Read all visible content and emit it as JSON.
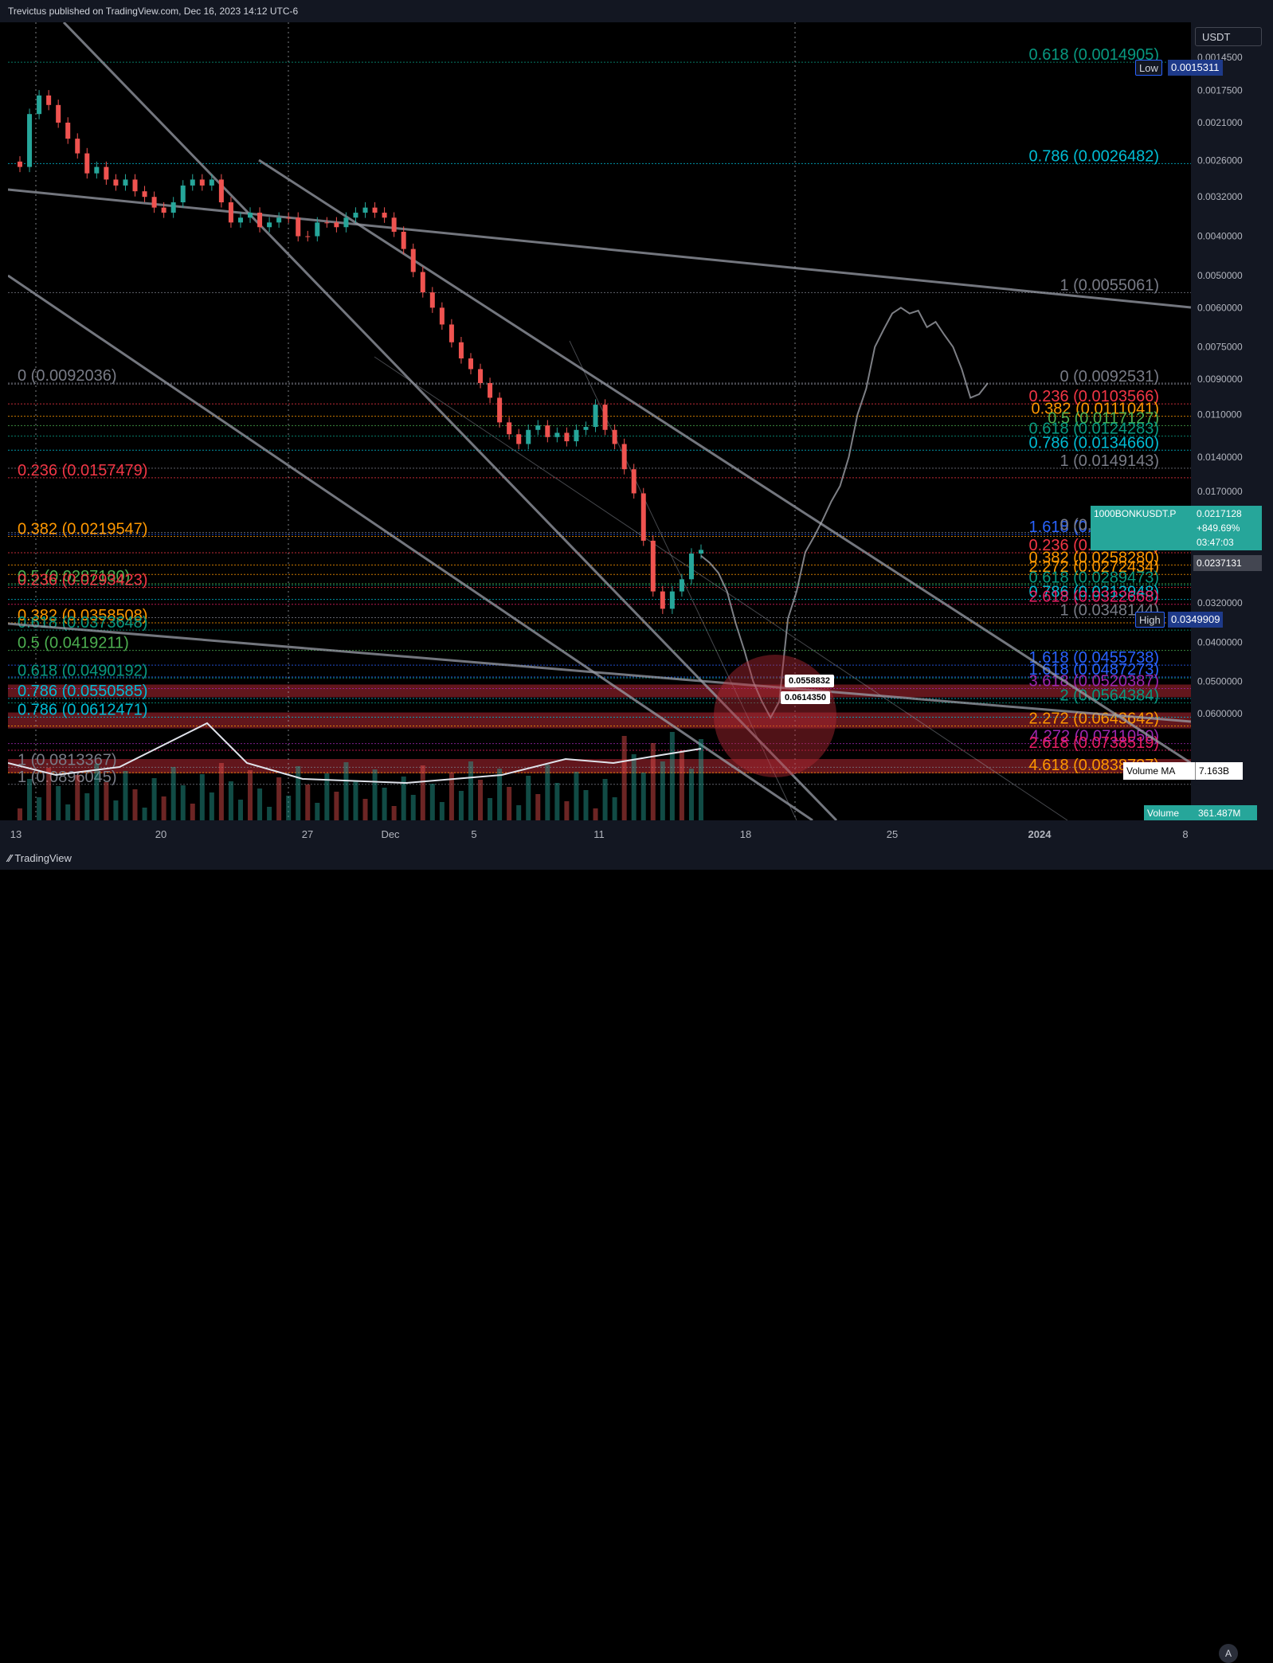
{
  "publisher": "Trevictus published on TradingView.com, Dec 16, 2023 14:12 UTC-6",
  "footer": {
    "logo": "TradingView"
  },
  "axis": {
    "currency": "USDT",
    "auto_label": "A",
    "y_ticks": [
      "0.0014500",
      "0.0017500",
      "0.0021000",
      "0.0026000",
      "0.0032000",
      "0.0040000",
      "0.0050000",
      "0.0060000",
      "0.0075000",
      "0.0090000",
      "0.0110000",
      "0.0140000",
      "0.0170000",
      "0.0260000",
      "0.0320000",
      "0.0400000",
      "0.0500000",
      "0.0600000"
    ],
    "x_ticks": [
      "13",
      "20",
      "27",
      "Dec",
      "5",
      "11",
      "18",
      "25",
      "2024",
      "8"
    ],
    "sub_ticks": [
      "2",
      "3",
      "5"
    ]
  },
  "markers": {
    "low_label": "Low",
    "low_value": "0.0015311",
    "high_label": "High",
    "high_value": "0.0349909"
  },
  "symbol": {
    "name": "1000BONKUSDT.P",
    "price": "0.0217128",
    "change": "+849.69%",
    "countdown": "03:47:03",
    "current_price": "0.0237131"
  },
  "volume": {
    "ma_label": "Volume MA",
    "ma_value": "7.163B",
    "label": "Volume",
    "value": "361.487M"
  },
  "callouts": [
    "0.0558832",
    "0.0614350"
  ],
  "colors": {
    "up": "#26a69a",
    "down": "#ef5350",
    "fib_red": "#f23645",
    "fib_orange": "#ff9800",
    "fib_green": "#4caf50",
    "fib_teal": "#089981",
    "fib_cyan": "#00bcd4",
    "fib_blue": "#2962ff",
    "fib_purple": "#9c27b0",
    "fib_pink": "#e91e63",
    "fib_gray": "#787b86",
    "zone": "#b22833"
  },
  "chart_data": {
    "type": "candlestick",
    "scale": "log-inverted",
    "ylim": [
      0.00145,
      0.06
    ],
    "x_range": [
      "Nov 13",
      "Jan 9"
    ],
    "grid": false,
    "fib_labels": [
      {
        "text": "0.618 (0.0014905)",
        "price": 0.0014905,
        "side": "right",
        "color": "#089981"
      },
      {
        "text": "0.786 (0.0026482)",
        "price": 0.0026482,
        "side": "right",
        "color": "#00bcd4"
      },
      {
        "text": "1 (0.0055061)",
        "price": 0.0055061,
        "side": "right",
        "color": "#787b86"
      },
      {
        "text": "0 (0.0092036)",
        "price": 0.0092036,
        "side": "left",
        "color": "#787b86"
      },
      {
        "text": "0 (0.0092531)",
        "price": 0.0092531,
        "side": "right",
        "color": "#787b86"
      },
      {
        "text": "0.236 (0.0103566)",
        "price": 0.0103566,
        "side": "right",
        "color": "#f23645"
      },
      {
        "text": "0.382 (0.0111041)",
        "price": 0.0111041,
        "side": "right",
        "color": "#ff9800"
      },
      {
        "text": "0.5 (0.0117127)",
        "price": 0.0117127,
        "side": "right",
        "color": "#4caf50"
      },
      {
        "text": "0.618 (0.0124283)",
        "price": 0.0124283,
        "side": "right",
        "color": "#089981"
      },
      {
        "text": "0.786 (0.0134660)",
        "price": 0.013466,
        "side": "right",
        "color": "#00bcd4"
      },
      {
        "text": "1 (0.0149143)",
        "price": 0.0149143,
        "side": "right",
        "color": "#787b86"
      },
      {
        "text": "0.236 (0.0157479)",
        "price": 0.0157479,
        "side": "left",
        "color": "#f23645"
      },
      {
        "text": "1.618 (0.0217128)",
        "price": 0.0217128,
        "side": "right",
        "color": "#2962ff"
      },
      {
        "text": "0 (0.0214753)",
        "price": 0.0214753,
        "side": "right",
        "color": "#787b86"
      },
      {
        "text": "0.382 (0.0219547)",
        "price": 0.0219547,
        "side": "left",
        "color": "#ff9800"
      },
      {
        "text": "0.236 (0.0240887)",
        "price": 0.0240887,
        "side": "right",
        "color": "#f23645"
      },
      {
        "text": "0.382 (0.0258280)",
        "price": 0.025828,
        "side": "right",
        "color": "#ff9800"
      },
      {
        "text": "2.272 (0.0272434)",
        "price": 0.0272434,
        "side": "right",
        "color": "#ff9800"
      },
      {
        "text": "0.5 (0.0287180)",
        "price": 0.028718,
        "side": "left",
        "color": "#4caf50"
      },
      {
        "text": "0.236 (0.0293423)",
        "price": 0.0293423,
        "side": "left",
        "color": "#f23645"
      },
      {
        "text": "0.618 (0.0289473)",
        "price": 0.0289473,
        "side": "right",
        "color": "#089981"
      },
      {
        "text": "0.786 (0.0313948)",
        "price": 0.0313948,
        "side": "right",
        "color": "#00bcd4"
      },
      {
        "text": "2.618 (0.0322668)",
        "price": 0.0322668,
        "side": "right",
        "color": "#e91e63"
      },
      {
        "text": "1 (0.0348144)",
        "price": 0.0348144,
        "side": "right",
        "color": "#787b86"
      },
      {
        "text": "0.382 (0.0358508)",
        "price": 0.0358508,
        "side": "left",
        "color": "#ff9800"
      },
      {
        "text": "0.618 (0.0373648)",
        "price": 0.0373648,
        "side": "left",
        "color": "#089981"
      },
      {
        "text": "0.5 (0.0419211)",
        "price": 0.0419211,
        "side": "left",
        "color": "#4caf50"
      },
      {
        "text": "1.618 (0.0455738)",
        "price": 0.0455738,
        "side": "right",
        "color": "#2962ff"
      },
      {
        "text": "1.618 (0.0487273)",
        "price": 0.0487273,
        "side": "right",
        "color": "#2962ff"
      },
      {
        "text": "0.618 (0.0490192)",
        "price": 0.0490192,
        "side": "left",
        "color": "#089981"
      },
      {
        "text": "3.618 (0.0520387)",
        "price": 0.0520387,
        "side": "right",
        "color": "#9c27b0"
      },
      {
        "text": "0.786 (0.0550585)",
        "price": 0.0550585,
        "side": "left",
        "color": "#00bcd4"
      },
      {
        "text": "2 (0.0564384)",
        "price": 0.0564384,
        "side": "right",
        "color": "#089981"
      },
      {
        "text": "0.786 (0.0612471)",
        "price": 0.0612471,
        "side": "left",
        "color": "#00bcd4"
      },
      {
        "text": "2.272 (0.0643642)",
        "price": 0.0643642,
        "side": "right",
        "color": "#ff9800"
      },
      {
        "text": "4.272 (0.0711050)",
        "price": 0.071105,
        "side": "right",
        "color": "#9c27b0"
      },
      {
        "text": "2.618 (0.0738519)",
        "price": 0.0738519,
        "side": "right",
        "color": "#e91e63"
      },
      {
        "text": "1 (0.0813367)",
        "price": 0.0813367,
        "side": "left",
        "color": "#787b86"
      },
      {
        "text": "4.618 (0.0838737)",
        "price": 0.0838737,
        "side": "right",
        "color": "#ff9800"
      },
      {
        "text": "1 (0.0896045)",
        "price": 0.0896045,
        "side": "left",
        "color": "#787b86"
      }
    ],
    "series": [
      {
        "name": "1000BONKUSDT.P",
        "type": "candles",
        "points": [
          0.0027,
          0.002,
          0.0018,
          0.0019,
          0.0021,
          0.0023,
          0.0025,
          0.0028,
          0.0027,
          0.0029,
          0.003,
          0.0029,
          0.0031,
          0.0032,
          0.0034,
          0.0035,
          0.0033,
          0.003,
          0.0029,
          0.003,
          0.0029,
          0.0033,
          0.0037,
          0.0036,
          0.0035,
          0.0038,
          0.0037,
          0.0036,
          0.0036,
          0.004,
          0.004,
          0.0037,
          0.0037,
          0.0038,
          0.0036,
          0.0035,
          0.0034,
          0.0035,
          0.0036,
          0.0039,
          0.0043,
          0.0049,
          0.0055,
          0.006,
          0.0066,
          0.0073,
          0.008,
          0.0085,
          0.0092,
          0.01,
          0.0115,
          0.0123,
          0.013,
          0.012,
          0.0117,
          0.0125,
          0.0122,
          0.0128,
          0.012,
          0.0118,
          0.0104,
          0.012,
          0.013,
          0.015,
          0.0172,
          0.0225,
          0.03,
          0.0331,
          0.03,
          0.028,
          0.0242,
          0.0237
        ]
      },
      {
        "name": "projection",
        "type": "line",
        "points": [
          0.0245,
          0.0255,
          0.027,
          0.03,
          0.036,
          0.042,
          0.05,
          0.056,
          0.0614,
          0.056,
          0.035,
          0.03,
          0.024,
          0.022,
          0.02,
          0.018,
          0.0165,
          0.014,
          0.011,
          0.0095,
          0.0075,
          0.0068,
          0.0062,
          0.006,
          0.0062,
          0.0061,
          0.0067,
          0.0065,
          0.007,
          0.0075,
          0.0085,
          0.01,
          0.0098,
          0.0092
        ]
      }
    ]
  }
}
